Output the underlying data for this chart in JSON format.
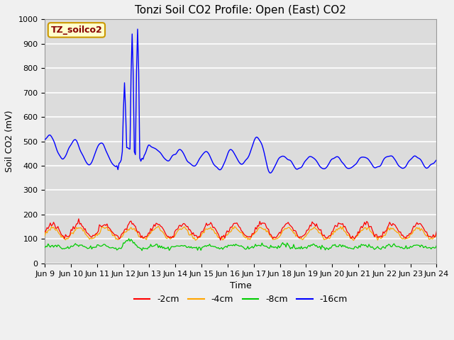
{
  "title": "Tonzi Soil CO2 Profile: Open (East) CO2",
  "ylabel": "Soil CO2 (mV)",
  "xlabel": "Time",
  "ylim": [
    0,
    1000
  ],
  "x_tick_labels": [
    "Jun 9",
    "Jun 10",
    "Jun 11",
    "Jun 12",
    "Jun 13",
    "Jun 14",
    "Jun 15",
    "Jun 16",
    "Jun 17",
    "Jun 18",
    "Jun 19",
    "Jun 20",
    "Jun 21",
    "Jun 22",
    "Jun 23",
    "Jun 24"
  ],
  "legend_labels": [
    "-2cm",
    "-4cm",
    "-8cm",
    "-16cm"
  ],
  "legend_colors": [
    "#ff0000",
    "#ffa500",
    "#00cc00",
    "#0000ff"
  ],
  "annotation_text": "TZ_soilco2",
  "annotation_bg": "#ffffcc",
  "annotation_border": "#cc9900",
  "plot_bg": "#dcdcdc",
  "title_fontsize": 11,
  "label_fontsize": 9,
  "tick_fontsize": 8
}
